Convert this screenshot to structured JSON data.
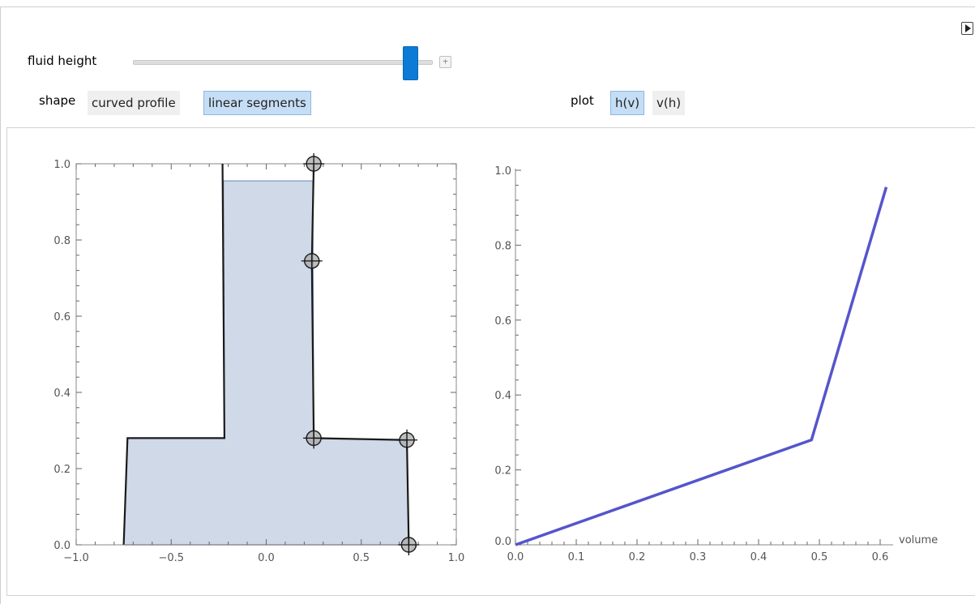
{
  "controls": {
    "fluid_height": {
      "label": "fluid height",
      "value_fraction": 0.93,
      "plus_glyph": "+"
    },
    "shape": {
      "label": "shape",
      "options": [
        "curved profile",
        "linear segments"
      ],
      "selected": "linear segments"
    },
    "plot": {
      "label": "plot",
      "options": [
        "h(v)",
        "v(h)"
      ],
      "selected": "h(v)"
    },
    "play_icon": "play-icon"
  },
  "colors": {
    "slider_thumb": "#0b7bd6",
    "fill": "#cfd9e8",
    "fill_edge": "#7f9bc8",
    "outline": "#1a1a1a",
    "line": "#5555cc",
    "selected_setter": "#c5def5"
  },
  "chart_data": [
    {
      "type": "area",
      "title": "",
      "xlabel": "",
      "ylabel": "",
      "xlim": [
        -1.0,
        1.0
      ],
      "ylim": [
        0.0,
        1.0
      ],
      "xticks": [
        -1.0,
        -0.5,
        0.0,
        0.5,
        1.0
      ],
      "yticks": [
        0.0,
        0.2,
        0.4,
        0.6,
        0.8,
        1.0
      ],
      "xtick_labels": [
        "−1.0",
        "−0.5",
        "0.0",
        "0.5",
        "1.0"
      ],
      "ytick_labels": [
        "0.0",
        "0.2",
        "0.4",
        "0.6",
        "0.8",
        "1.0"
      ],
      "frame": true,
      "outline": [
        [
          -0.75,
          0.0
        ],
        [
          -0.73,
          0.28
        ],
        [
          -0.22,
          0.28
        ],
        [
          -0.23,
          1.0
        ]
      ],
      "control_points": [
        [
          0.25,
          1.0
        ],
        [
          0.24,
          0.745
        ],
        [
          0.25,
          0.28
        ],
        [
          0.74,
          0.275
        ],
        [
          0.75,
          0.0
        ]
      ],
      "fill_level": 0.955
    },
    {
      "type": "line",
      "title": "",
      "xlabel": "volume",
      "ylabel": "",
      "xlim": [
        0.0,
        0.6
      ],
      "ylim": [
        0.0,
        1.0
      ],
      "xticks": [
        0.0,
        0.1,
        0.2,
        0.3,
        0.4,
        0.5,
        0.6
      ],
      "yticks": [
        0.0,
        0.2,
        0.4,
        0.6,
        0.8,
        1.0
      ],
      "xtick_labels": [
        "0.0",
        "0.1",
        "0.2",
        "0.3",
        "0.4",
        "0.5",
        "0.6"
      ],
      "ytick_labels": [
        "0.0",
        "0.2",
        "0.4",
        "0.6",
        "0.8",
        "1.0"
      ],
      "series": [
        {
          "x": [
            0.0,
            0.487,
            0.61
          ],
          "y": [
            0.0,
            0.28,
            0.955
          ]
        }
      ]
    }
  ]
}
